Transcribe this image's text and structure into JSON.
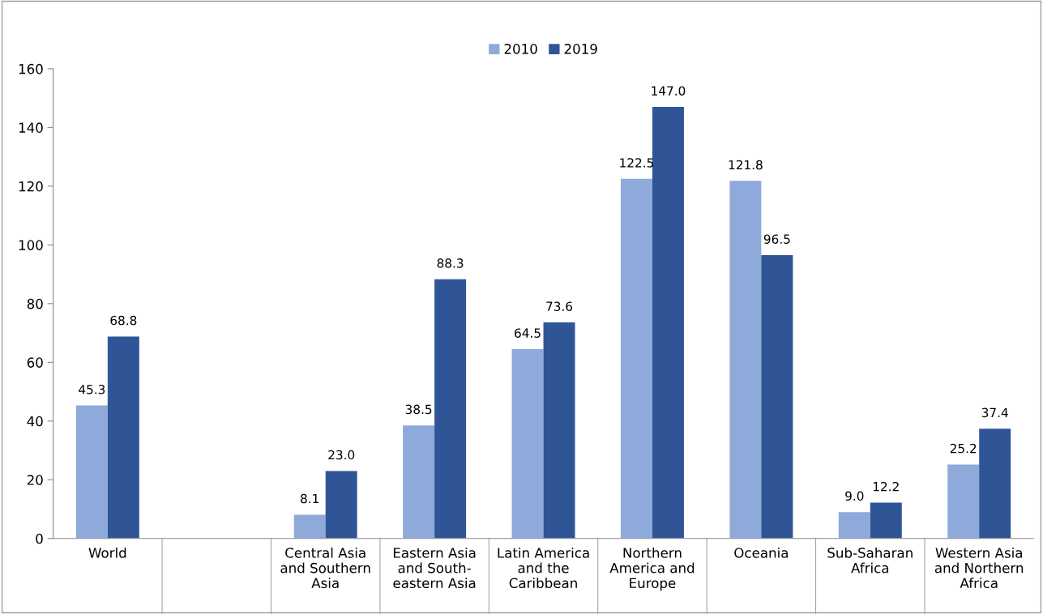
{
  "chart_data": {
    "type": "bar",
    "categories": [
      "World",
      null,
      "Central Asia\nand Southern\nAsia",
      "Eastern Asia\nand South-\neastern Asia",
      "Latin America\nand the\nCaribbean",
      "Northern\nAmerica and\nEurope",
      "Oceania",
      "Sub-Saharan\nAfrica",
      "Western Asia\nand Northern\nAfrica"
    ],
    "series": [
      {
        "name": "2010",
        "color": "#8eaadb",
        "values": [
          45.3,
          null,
          8.1,
          38.5,
          64.5,
          122.5,
          121.8,
          9.0,
          25.2
        ],
        "value_labels": [
          "45.3",
          null,
          "8.1",
          "38.5",
          "64.5",
          "122.5",
          "121.8",
          "9.0",
          "25.2"
        ]
      },
      {
        "name": "2019",
        "color": "#2f5597",
        "values": [
          68.8,
          null,
          23.0,
          88.3,
          73.6,
          147.0,
          96.5,
          12.2,
          37.4
        ],
        "value_labels": [
          "68.8",
          null,
          "23.0",
          "88.3",
          "73.6",
          "147.0",
          "96.5",
          "12.2",
          "37.4"
        ]
      }
    ],
    "ylim": [
      0,
      160
    ],
    "yticks": [
      0,
      20,
      40,
      60,
      80,
      100,
      120,
      140,
      160
    ],
    "grid": false,
    "legend": "top"
  }
}
